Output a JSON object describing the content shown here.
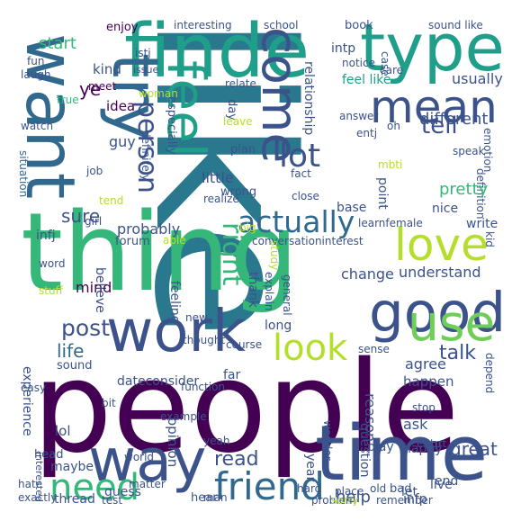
{
  "words": [
    {
      "text": "like",
      "color": "#2a788e",
      "v": true
    },
    {
      "text": "people",
      "color": "#440154",
      "v": false
    },
    {
      "text": "thing",
      "color": "#35b779",
      "v": false
    },
    {
      "text": "time",
      "color": "#3b528b",
      "v": false
    },
    {
      "text": "want",
      "color": "#31688e",
      "v": true
    },
    {
      "text": "finde",
      "color": "#1f9e89",
      "v": false
    },
    {
      "text": "type",
      "color": "#1f9e89",
      "v": false
    },
    {
      "text": "good",
      "color": "#3b528b",
      "v": false
    },
    {
      "text": "work",
      "color": "#3b528b",
      "v": false
    },
    {
      "text": "way",
      "color": "#3b528b",
      "v": false
    },
    {
      "text": "use",
      "color": "#6ece58",
      "v": false
    },
    {
      "text": "love",
      "color": "#b5de2b",
      "v": false
    },
    {
      "text": "feel",
      "color": "#1f9e89",
      "v": true
    },
    {
      "text": "try",
      "color": "#31688e",
      "v": true
    },
    {
      "text": "come",
      "color": "#3b528b",
      "v": true
    },
    {
      "text": "mean",
      "color": "#3b528b",
      "v": false
    },
    {
      "text": "need",
      "color": "#35b779",
      "v": false
    },
    {
      "text": "friend",
      "color": "#31688e",
      "v": false
    },
    {
      "text": "look",
      "color": "#b5de2b",
      "v": false
    },
    {
      "text": "actually",
      "color": "#31688e",
      "v": false
    },
    {
      "text": "person",
      "color": "#3b528b",
      "v": true
    },
    {
      "text": "lot",
      "color": "#3b528b",
      "v": false
    },
    {
      "text": "tell",
      "color": "#3b528b",
      "v": false
    },
    {
      "text": "sure",
      "color": "#3b528b",
      "v": false
    },
    {
      "text": "post",
      "color": "#3b528b",
      "v": false
    },
    {
      "text": "life",
      "color": "#31688e",
      "v": false
    },
    {
      "text": "talk",
      "color": "#3b528b",
      "v": false
    },
    {
      "text": "read",
      "color": "#3b528b",
      "v": false
    },
    {
      "text": "right",
      "color": "#35b779",
      "v": true
    },
    {
      "text": "ye",
      "color": "#440154",
      "v": false
    },
    {
      "text": "kind",
      "color": "#3b528b",
      "v": false
    },
    {
      "text": "start",
      "color": "#35b779",
      "v": false
    },
    {
      "text": "enjoy",
      "color": "#440154",
      "v": false
    },
    {
      "text": "interesting",
      "color": "#3b528b",
      "v": false
    },
    {
      "text": "school",
      "color": "#3b528b",
      "v": false
    },
    {
      "text": "book",
      "color": "#3b528b",
      "v": false
    },
    {
      "text": "sound like",
      "color": "#3b528b",
      "v": false
    },
    {
      "text": "intp",
      "color": "#3b528b",
      "v": false
    },
    {
      "text": "istj",
      "color": "#3b528b",
      "v": false
    },
    {
      "text": "issue",
      "color": "#3b528b",
      "v": false
    },
    {
      "text": "case",
      "color": "#3b528b",
      "v": true
    },
    {
      "text": "fun",
      "color": "#3b528b",
      "v": false
    },
    {
      "text": "laugh",
      "color": "#3b528b",
      "v": false
    },
    {
      "text": "meet",
      "color": "#440154",
      "v": false
    },
    {
      "text": "woman",
      "color": "#b5de2b",
      "v": false
    },
    {
      "text": "relate",
      "color": "#3b528b",
      "v": false
    },
    {
      "text": "feel like",
      "color": "#1f9e89",
      "v": false
    },
    {
      "text": "usually",
      "color": "#3b528b",
      "v": false
    },
    {
      "text": "notice",
      "color": "#3b528b",
      "v": false
    },
    {
      "text": "care",
      "color": "#3b528b",
      "v": false
    },
    {
      "text": "relationship",
      "color": "#3b528b",
      "v": true
    },
    {
      "text": "idea",
      "color": "#440154",
      "v": false
    },
    {
      "text": "true",
      "color": "#35b779",
      "v": false
    },
    {
      "text": "watch",
      "color": "#3b528b",
      "v": false
    },
    {
      "text": "guy",
      "color": "#3b528b",
      "v": false
    },
    {
      "text": "day",
      "color": "#3b528b",
      "v": true
    },
    {
      "text": "leave",
      "color": "#b5de2b",
      "v": false
    },
    {
      "text": "answer",
      "color": "#3b528b",
      "v": false
    },
    {
      "text": "entj",
      "color": "#3b528b",
      "v": false
    },
    {
      "text": "oh",
      "color": "#3b528b",
      "v": false
    },
    {
      "text": "different",
      "color": "#3b528b",
      "v": false
    },
    {
      "text": "situation",
      "color": "#31688e",
      "v": true
    },
    {
      "text": "definitely",
      "color": "#3b528b",
      "v": true
    },
    {
      "text": "especially",
      "color": "#3b528b",
      "v": true
    },
    {
      "text": "plan",
      "color": "#3b528b",
      "v": false
    },
    {
      "text": "job",
      "color": "#3b528b",
      "v": false
    },
    {
      "text": "fact",
      "color": "#3b528b",
      "v": false
    },
    {
      "text": "mbti",
      "color": "#b5de2b",
      "v": false
    },
    {
      "text": "speak",
      "color": "#3b528b",
      "v": false
    },
    {
      "text": "emotion",
      "color": "#3b528b",
      "v": true
    },
    {
      "text": "definition",
      "color": "#3b528b",
      "v": true
    },
    {
      "text": "little",
      "color": "#3b528b",
      "v": false
    },
    {
      "text": "wrong",
      "color": "#3b528b",
      "v": false
    },
    {
      "text": "pretty",
      "color": "#35b779",
      "v": false
    },
    {
      "text": "nice",
      "color": "#3b528b",
      "v": false
    },
    {
      "text": "point",
      "color": "#3b528b",
      "v": true
    },
    {
      "text": "tend",
      "color": "#b5de2b",
      "v": false
    },
    {
      "text": "realize",
      "color": "#3b528b",
      "v": false
    },
    {
      "text": "close",
      "color": "#3b528b",
      "v": false
    },
    {
      "text": "girl",
      "color": "#3b528b",
      "v": false
    },
    {
      "text": "base",
      "color": "#3b528b",
      "v": false
    },
    {
      "text": "infj",
      "color": "#3b528b",
      "v": false
    },
    {
      "text": "probably",
      "color": "#3b528b",
      "v": false
    },
    {
      "text": "big",
      "color": "#b5de2b",
      "v": false
    },
    {
      "text": "learnfemale",
      "color": "#3b528b",
      "v": false
    },
    {
      "text": "write",
      "color": "#3b528b",
      "v": false
    },
    {
      "text": "able",
      "color": "#b5de2b",
      "v": false
    },
    {
      "text": "conversationinterest",
      "color": "#3b528b",
      "v": false
    },
    {
      "text": "kid",
      "color": "#3b528b",
      "v": true
    },
    {
      "text": "forum",
      "color": "#3b528b",
      "v": false
    },
    {
      "text": "word",
      "color": "#3b528b",
      "v": false
    },
    {
      "text": "change",
      "color": "#3b528b",
      "v": false
    },
    {
      "text": "understand",
      "color": "#3b528b",
      "v": false
    },
    {
      "text": "mind",
      "color": "#440154",
      "v": false
    },
    {
      "text": "believe",
      "color": "#3b528b",
      "v": true
    },
    {
      "text": "feeling",
      "color": "#3b528b",
      "v": true
    },
    {
      "text": "thank",
      "color": "#3b528b",
      "v": true
    },
    {
      "text": "explain",
      "color": "#3b528b",
      "v": true
    },
    {
      "text": "study",
      "color": "#b5de2b",
      "v": true
    },
    {
      "text": "general",
      "color": "#3b528b",
      "v": true
    },
    {
      "text": "stuff",
      "color": "#b5de2b",
      "v": false
    },
    {
      "text": "new",
      "color": "#3b528b",
      "v": false
    },
    {
      "text": "long",
      "color": "#3b528b",
      "v": false
    },
    {
      "text": "experience",
      "color": "#3b528b",
      "v": true
    },
    {
      "text": "thought",
      "color": "#3b528b",
      "v": false
    },
    {
      "text": "course",
      "color": "#3b528b",
      "v": false
    },
    {
      "text": "sense",
      "color": "#3b528b",
      "v": false
    },
    {
      "text": "depend",
      "color": "#3b528b",
      "v": true
    },
    {
      "text": "sound",
      "color": "#3b528b",
      "v": false
    },
    {
      "text": "far",
      "color": "#3b528b",
      "v": false
    },
    {
      "text": "agree",
      "color": "#3b528b",
      "v": false
    },
    {
      "text": "easy",
      "color": "#3b528b",
      "v": false
    },
    {
      "text": "dateconsider",
      "color": "#3b528b",
      "v": false
    },
    {
      "text": "function",
      "color": "#3b528b",
      "v": false
    },
    {
      "text": "happen",
      "color": "#3b528b",
      "v": false
    },
    {
      "text": "reason",
      "color": "#3b528b",
      "v": true
    },
    {
      "text": "bit",
      "color": "#3b528b",
      "v": false
    },
    {
      "text": "wonder",
      "color": "#3b528b",
      "v": true
    },
    {
      "text": "stop",
      "color": "#3b528b",
      "v": false
    },
    {
      "text": "ask",
      "color": "#3b528b",
      "v": false
    },
    {
      "text": "sort",
      "color": "#3b528b",
      "v": false
    },
    {
      "text": "lol",
      "color": "#3b528b",
      "v": false
    },
    {
      "text": "example",
      "color": "#3b528b",
      "v": false
    },
    {
      "text": "question",
      "color": "#3b528b",
      "v": true
    },
    {
      "text": "entp",
      "color": "#3b528b",
      "v": false
    },
    {
      "text": "opinion",
      "color": "#3b528b",
      "v": true
    },
    {
      "text": "interested",
      "color": "#3b528b",
      "v": true
    },
    {
      "text": "yeah",
      "color": "#3b528b",
      "v": false
    },
    {
      "text": "head",
      "color": "#3b528b",
      "v": false
    },
    {
      "text": "world",
      "color": "#3b528b",
      "v": false
    },
    {
      "text": "year",
      "color": "#3b528b",
      "v": true
    },
    {
      "text": "play",
      "color": "#3b528b",
      "v": false
    },
    {
      "text": "happy",
      "color": "#3b528b",
      "v": false
    },
    {
      "text": "great",
      "color": "#3b528b",
      "v": false
    },
    {
      "text": "maybe",
      "color": "#3b528b",
      "v": false
    },
    {
      "text": "man",
      "color": "#3b528b",
      "v": false
    },
    {
      "text": "hard",
      "color": "#3b528b",
      "v": false
    },
    {
      "text": "place",
      "color": "#3b528b",
      "v": false
    },
    {
      "text": "let",
      "color": "#3b528b",
      "v": false
    },
    {
      "text": "live",
      "color": "#3b528b",
      "v": false
    },
    {
      "text": "thread",
      "color": "#3b528b",
      "v": false
    },
    {
      "text": "guess",
      "color": "#3b528b",
      "v": false
    },
    {
      "text": "problem",
      "color": "#3b528b",
      "v": false
    },
    {
      "text": "help",
      "color": "#3b528b",
      "v": false
    },
    {
      "text": "infp",
      "color": "#3b528b",
      "v": false
    },
    {
      "text": "end",
      "color": "#3b528b",
      "v": false
    },
    {
      "text": "hate",
      "color": "#3b528b",
      "v": false
    },
    {
      "text": "matter",
      "color": "#3b528b",
      "v": false
    },
    {
      "text": "hear",
      "color": "#3b528b",
      "v": false
    },
    {
      "text": "child",
      "color": "#3b528b",
      "v": true
    },
    {
      "text": "old",
      "color": "#3b528b",
      "v": false
    },
    {
      "text": "exactly",
      "color": "#3b528b",
      "v": false
    },
    {
      "text": "test",
      "color": "#3b528b",
      "v": false
    },
    {
      "text": "sorry",
      "color": "#b5de2b",
      "v": false
    },
    {
      "text": "remember",
      "color": "#3b528b",
      "v": false
    },
    {
      "text": "bad",
      "color": "#3b528b",
      "v": false
    }
  ]
}
